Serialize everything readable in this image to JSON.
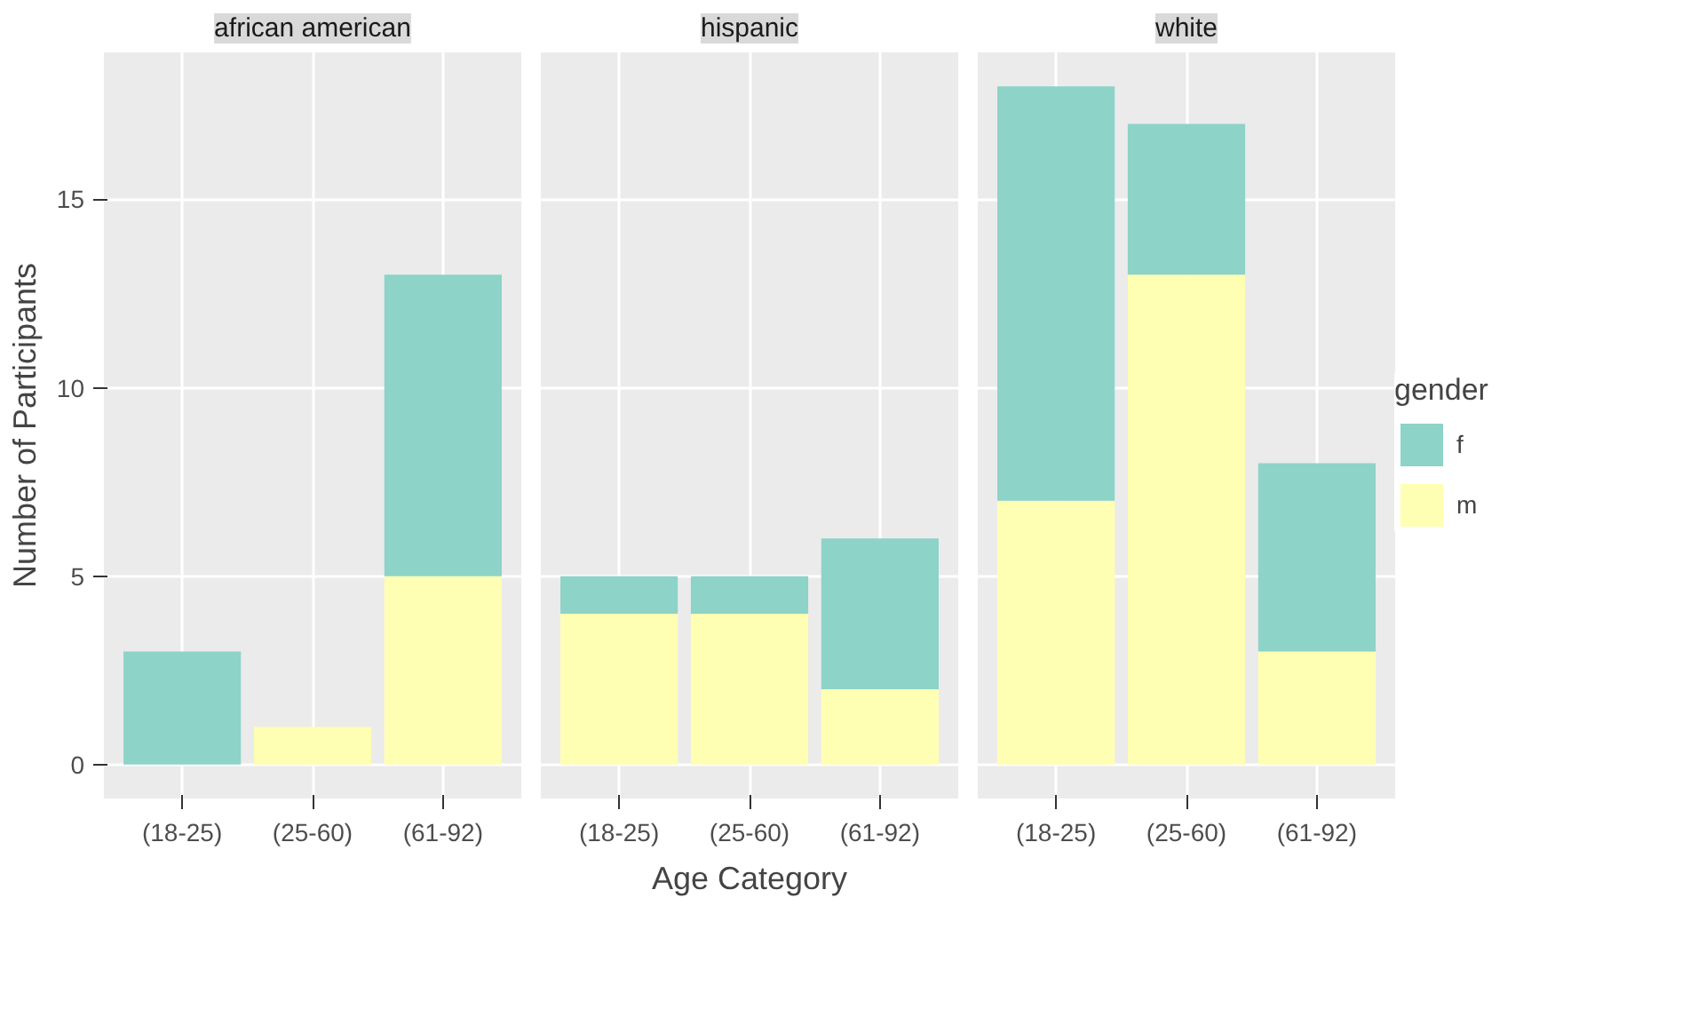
{
  "chart_data": [
    {
      "type": "bar",
      "stacked": true,
      "title": "african american",
      "ylabel": "Number of Participants",
      "categories": [
        "(18-25)",
        "(25-60)",
        "(61-92)"
      ],
      "series": [
        {
          "color": "#ffffb3",
          "values": [
            0,
            1,
            5
          ]
        },
        {
          "color": "#8dd3c7",
          "values": [
            3,
            0,
            8
          ]
        }
      ],
      "ylim": [
        -0.9,
        18.9
      ],
      "yticks": [
        0,
        5,
        10,
        15
      ],
      "grid": true,
      "legend": false
    },
    {
      "type": "bar",
      "stacked": true,
      "title": "hispanic",
      "xlabel": "Age Category",
      "categories": [
        "(18-25)",
        "(25-60)",
        "(61-92)"
      ],
      "series": [
        {
          "color": "#ffffb3",
          "values": [
            4,
            4,
            2
          ]
        },
        {
          "color": "#8dd3c7",
          "values": [
            1,
            1,
            4
          ]
        }
      ],
      "ylim": [
        -0.9,
        18.9
      ],
      "yticks": [
        0,
        5,
        10,
        15
      ],
      "grid": true,
      "tick_labels": "x",
      "legend": false
    },
    {
      "type": "bar",
      "stacked": true,
      "title": "white",
      "legend_title": "gender",
      "categories": [
        "(18-25)",
        "(25-60)",
        "(61-92)"
      ],
      "series": [
        {
          "name": "m",
          "color": "#ffffb3",
          "values": [
            7,
            13,
            3
          ]
        },
        {
          "name": "f",
          "color": "#8dd3c7",
          "values": [
            11,
            4,
            5
          ]
        }
      ],
      "ylim": [
        -0.9,
        18.9
      ],
      "yticks": [
        0,
        5,
        10,
        15
      ],
      "grid": true,
      "tick_labels": "x",
      "legend": "right"
    }
  ]
}
